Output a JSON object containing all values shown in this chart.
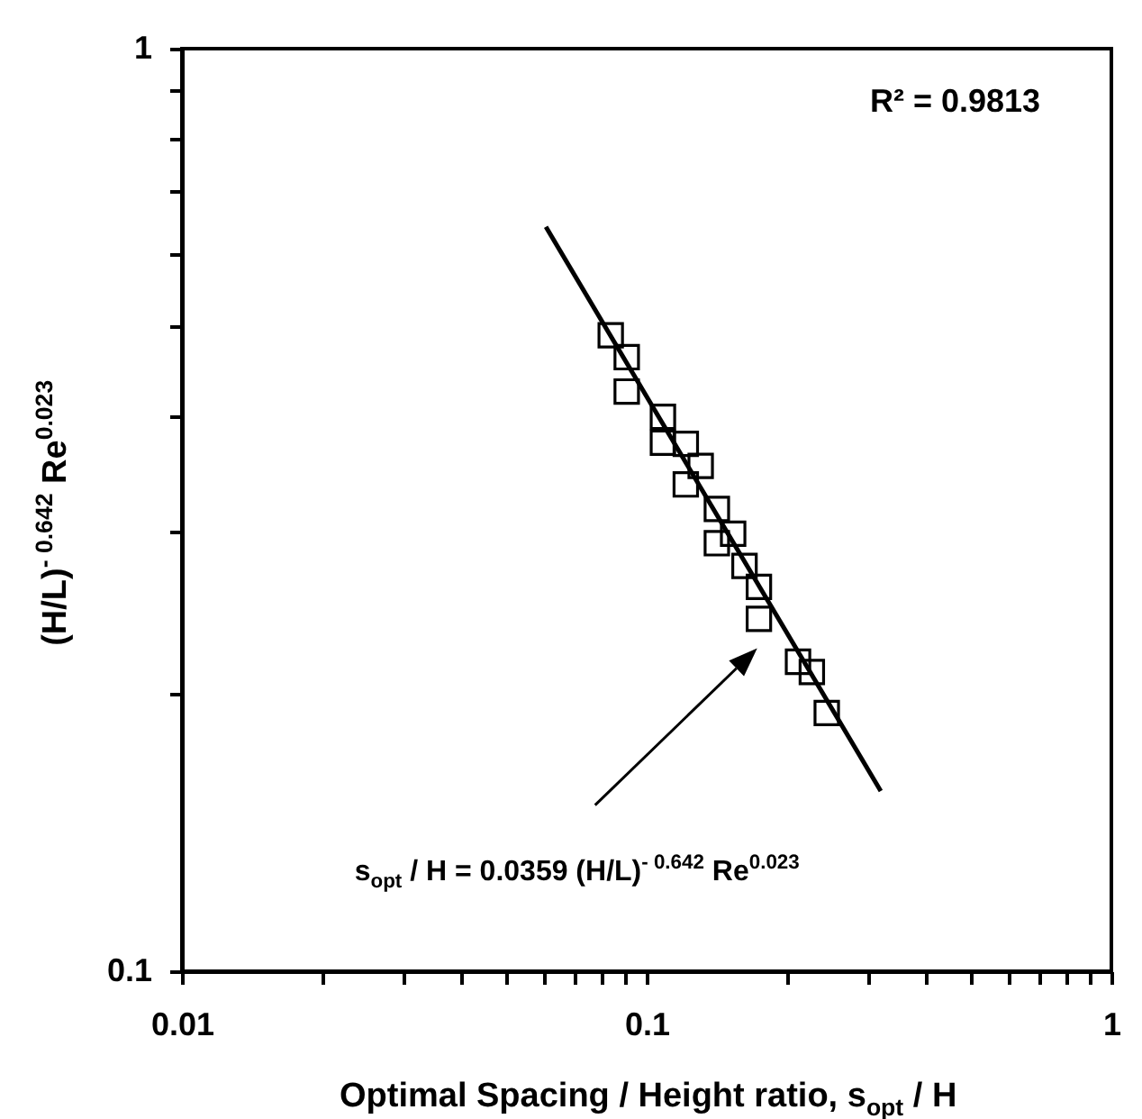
{
  "chart_data": {
    "type": "scatter",
    "xlabel": "Optimal Spacing / Height ratio, s$_{opt}$ / H",
    "ylabel": "(H/L)$^{- 0.642}$ Re$^{0.023}$",
    "log": "xy",
    "xlim": [
      0.01,
      1
    ],
    "ylim": [
      0.1,
      1
    ],
    "xticks": [
      0.01,
      {
        "value": 0.02,
        "label": null
      },
      {
        "value": 0.03,
        "label": null
      },
      {
        "value": 0.04,
        "label": null
      },
      {
        "value": 0.05,
        "label": null
      },
      {
        "value": 0.06,
        "label": null
      },
      {
        "value": 0.07,
        "label": null
      },
      {
        "value": 0.08,
        "label": null
      },
      {
        "value": 0.09,
        "label": null
      },
      0.1,
      {
        "value": 0.2,
        "label": null
      },
      {
        "value": 0.3,
        "label": null
      },
      {
        "value": 0.4,
        "label": null
      },
      {
        "value": 0.5,
        "label": null
      },
      {
        "value": 0.6,
        "label": null
      },
      {
        "value": 0.7,
        "label": null
      },
      {
        "value": 0.8,
        "label": null
      },
      {
        "value": 0.9,
        "label": null
      },
      1
    ],
    "yticks": [
      0.1,
      {
        "value": 0.2,
        "label": null
      },
      {
        "value": 0.3,
        "label": null
      },
      {
        "value": 0.4,
        "label": null
      },
      {
        "value": 0.5,
        "label": null
      },
      {
        "value": 0.6,
        "label": null
      },
      {
        "value": 0.7,
        "label": null
      },
      {
        "value": 0.8,
        "label": null
      },
      {
        "value": 0.9,
        "label": null
      },
      1
    ],
    "grid": false,
    "series": [
      {
        "marker": "square",
        "color": "#000000",
        "x": [
          0.0837,
          0.0906,
          0.0906,
          0.1084,
          0.1084,
          0.1214,
          0.1307,
          0.1214,
          0.1416,
          0.1535,
          0.1416,
          0.1624,
          0.1744,
          0.1744,
          0.2117,
          0.2267,
          0.2441
        ],
        "values": [
          0.489,
          0.463,
          0.425,
          0.399,
          0.374,
          0.373,
          0.353,
          0.337,
          0.317,
          0.298,
          0.291,
          0.275,
          0.261,
          0.241,
          0.2165,
          0.211,
          0.1905
        ]
      },
      {
        "type": "line",
        "color": "#000000",
        "x": [
          0.0607,
          0.319
        ],
        "values": [
          0.641,
          0.1568
        ]
      }
    ],
    "annotations": [
      "R² = 0.9813",
      "s$_{opt}$ / H = 0.0359 (H/L)$^{- 0.642}$ Re$^{0.023}$"
    ]
  }
}
